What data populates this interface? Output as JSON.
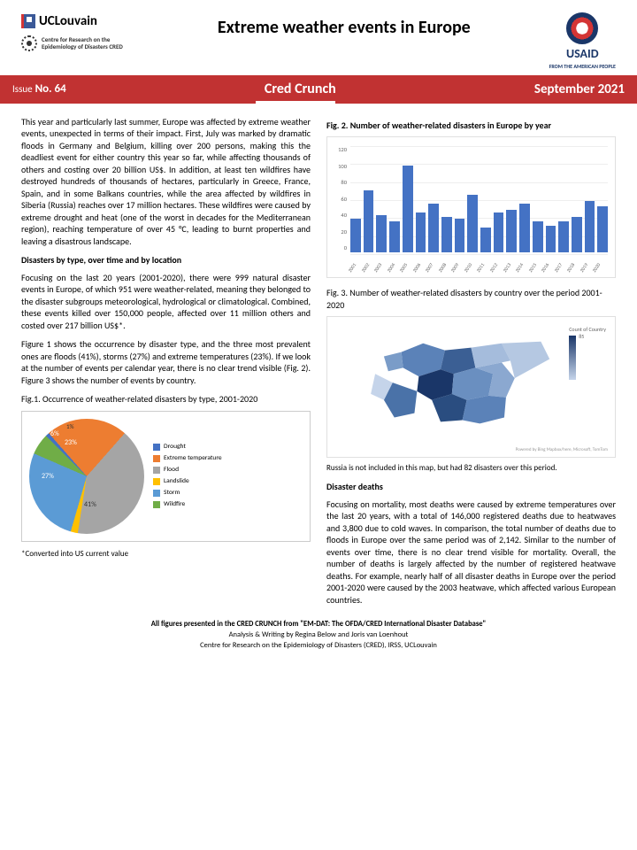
{
  "header": {
    "org": "UCLouvain",
    "cred": "Centre for Research on the Epidemiology of Disasters CRED",
    "title": "Extreme weather events in Europe",
    "usaid": "USAID",
    "usaid_sub": "FROM THE AMERICAN PEOPLE"
  },
  "banner": {
    "issue_lbl": "Issue",
    "issue_no": "No. 64",
    "name": "Cred Crunch",
    "date": "September 2021"
  },
  "body": {
    "intro": "This year and particularly last summer, Europe was affected by extreme weather events, unexpected in terms of their impact. First, July was marked by dramatic floods in Germany and Belgium, killing over 200 persons, making this the deadliest event for either country this year so far, while affecting thousands of others and costing over 20 billion US$. In addition, at least ten wildfires have destroyed hundreds of thousands of hectares, particularly in Greece, France, Spain, and in some Balkans countries, while the area affected by wildfires in Siberia (Russia) reaches over 17 million hectares. These wildfires were caused by extreme drought and heat (one of the worst in decades for the Mediterranean region), reaching temperature of over 45 °C, leading to burnt properties and leaving a disastrous landscape.",
    "h1": "Disasters by type, over time and by location",
    "p2": "Focusing on the last 20 years (2001-2020), there were 999 natural disaster events in Europe, of which 951 were weather-related, meaning they belonged to the disaster subgroups meteorological, hydrological or climatological. Combined, these events killed over 150,000 people, affected over 11 million others and costed over 217 billion US$*.",
    "p3": "Figure 1 shows the occurrence by disaster type, and the three most prevalent ones are floods (41%), storms (27%) and extreme temperatures (23%). If we look at the number of events per calendar year, there is no clear trend visible (Fig. 2). Figure 3 shows the number of events by country.",
    "fig1_cap": "Fig.1. Occurrence of weather-related disasters by type, 2001-2020",
    "fig2_cap": "Fig. 2. Number of weather-related disasters in Europe by year",
    "fig3_cap": "Fig. 3. Number of weather-related disasters by country over the period 2001-2020",
    "map_note": "Russia is not included in this map, but had 82 disasters over this period.",
    "h2": "Disaster deaths",
    "p4": "Focusing on mortality, most deaths were caused by extreme temperatures over the last 20 years, with a total of 146,000 registered deaths due to heatwaves and 3,800 due to cold waves. In comparison, the total number of deaths due to floods in Europe over the same period was of 2,142.  Similar to the number of events over time, there is no clear trend visible for mortality. Overall,  the number of deaths is largely affected by the number of registered heatwave deaths. For example, nearly half of all disaster deaths in Europe over the period 2001-2020 were caused by the 2003 heatwave, which affected various European countries.",
    "footnote": "*Converted into US current value"
  },
  "pie": {
    "slices": [
      {
        "label": "Drought",
        "pct": 1,
        "color": "#4472c4"
      },
      {
        "label": "Extreme temperature",
        "pct": 23,
        "color": "#ed7d31"
      },
      {
        "label": "Flood",
        "pct": 41,
        "color": "#a5a5a5"
      },
      {
        "label": "Landslide",
        "pct": 2,
        "color": "#ffc000"
      },
      {
        "label": "Storm",
        "pct": 27,
        "color": "#5b9bd5"
      },
      {
        "label": "Wildfire",
        "pct": 6,
        "color": "#70ad47"
      }
    ],
    "label_pcts": {
      "et": "23%",
      "fl": "41%",
      "st": "27%",
      "wf": "6%",
      "dr": "1%"
    }
  },
  "bar": {
    "years": [
      "2001",
      "2002",
      "2003",
      "2004",
      "2005",
      "2006",
      "2007",
      "2008",
      "2009",
      "2010",
      "2011",
      "2012",
      "2013",
      "2014",
      "2015",
      "2016",
      "2017",
      "2018",
      "2019",
      "2020"
    ],
    "values": [
      38,
      70,
      42,
      35,
      98,
      45,
      55,
      40,
      38,
      65,
      28,
      45,
      48,
      55,
      35,
      30,
      35,
      40,
      58,
      52
    ],
    "ylim": [
      0,
      120
    ],
    "yticks": [
      0,
      20,
      40,
      60,
      80,
      100,
      120
    ],
    "bar_color": "#4472c4",
    "grid_color": "#eeeeee"
  },
  "map": {
    "leg_title": "Count of Country",
    "leg_max": "85",
    "colors": {
      "dark": "#1a3668",
      "mid": "#5b82b8",
      "light": "#c5d4ea"
    },
    "credit": "Powered by Bing\nMapbox/here, Microsoft, TomTom"
  },
  "footer": {
    "l1": "All figures presented in the CRED CRUNCH from \"EM-DAT: The OFDA/CRED International Disaster Database\"",
    "l2": "Analysis & Writing by Regina Below and Joris van Loenhout",
    "l3": "Centre for Research on the Epidemiology of Disasters (CRED), IRSS, UCLouvain"
  }
}
